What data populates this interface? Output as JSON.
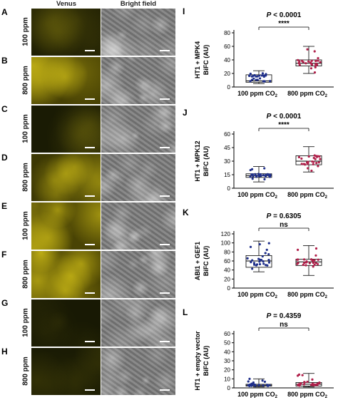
{
  "headers": {
    "venus": "Venus",
    "bright_field": "Bright field"
  },
  "rows": [
    {
      "letter": "A",
      "label": "100 ppm",
      "intensity": 0.18
    },
    {
      "letter": "B",
      "label": "800 ppm",
      "intensity": 0.75
    },
    {
      "letter": "C",
      "label": "100 ppm",
      "intensity": 0.12
    },
    {
      "letter": "D",
      "label": "800 ppm",
      "intensity": 0.6
    },
    {
      "letter": "E",
      "label": "100 ppm",
      "intensity": 0.78
    },
    {
      "letter": "F",
      "label": "800 ppm",
      "intensity": 0.85
    },
    {
      "letter": "G",
      "label": "100 ppm",
      "intensity": 0.08
    },
    {
      "letter": "H",
      "label": "800 ppm",
      "intensity": 0.12
    }
  ],
  "colors": {
    "venus": "#e6d21a",
    "blue_series": "#1f2f8a",
    "red_series": "#b0204a"
  },
  "chart_data": [
    {
      "type": "box",
      "letter": "I",
      "ylabel_line1": "HT1 + MPK4",
      "ylabel_line2": "BiFC (AU)",
      "pvalue_label": "P",
      "pvalue_text": " < 0.0001",
      "sig": "****",
      "categories": [
        "100 ppm CO",
        "800 ppm CO"
      ],
      "subscript": "2",
      "ylim": [
        0,
        80
      ],
      "yticks": [
        "0",
        "20",
        "40",
        "60",
        "80"
      ],
      "boxes": [
        {
          "min": 5,
          "q1": 7,
          "median": 9,
          "q3": 18,
          "max": 24
        },
        {
          "min": 20,
          "q1": 31,
          "median": 35,
          "q3": 40,
          "max": 60
        }
      ]
    },
    {
      "type": "box",
      "letter": "J",
      "ylabel_line1": "HT1 + MPK12",
      "ylabel_line2": "BiFC (AU)",
      "pvalue_label": "P",
      "pvalue_text": " < 0.0001",
      "sig": "****",
      "categories": [
        "100 ppm CO",
        "800 ppm CO"
      ],
      "subscript": "2",
      "ylim": [
        0,
        60
      ],
      "yticks": [
        "0",
        "15",
        "30",
        "45",
        "60"
      ],
      "boxes": [
        {
          "min": 7,
          "q1": 12,
          "median": 14,
          "q3": 16,
          "max": 24
        },
        {
          "min": 18,
          "q1": 26,
          "median": 30,
          "q3": 36,
          "max": 46
        }
      ]
    },
    {
      "type": "box",
      "letter": "K",
      "ylabel_line1": "ABI1 + GEF1",
      "ylabel_line2": "BiFC (AU)",
      "pvalue_label": "P",
      "pvalue_text": " = 0.6305",
      "sig": "ns",
      "categories": [
        "100 ppm CO",
        "800 ppm CO"
      ],
      "subscript": "2",
      "ylim": [
        0,
        120
      ],
      "yticks": [
        "0",
        "20",
        "40",
        "60",
        "80",
        "100",
        "120"
      ],
      "boxes": [
        {
          "min": 36,
          "q1": 46,
          "median": 60,
          "q3": 72,
          "max": 104
        },
        {
          "min": 28,
          "q1": 50,
          "median": 58,
          "q3": 64,
          "max": 94
        }
      ]
    },
    {
      "type": "box",
      "letter": "L",
      "ylabel_line1": "HT1 + empty vector",
      "ylabel_line2": "BiFC (AU)",
      "pvalue_label": "P",
      "pvalue_text": " = 0.4359",
      "sig": "ns",
      "categories": [
        "100 ppm CO",
        "800 ppm CO"
      ],
      "subscript": "2",
      "ylim": [
        0,
        60
      ],
      "yticks": [
        "0",
        "10",
        "20",
        "30",
        "40",
        "50",
        "60"
      ],
      "boxes": [
        {
          "min": 1,
          "q1": 2,
          "median": 3,
          "q3": 4,
          "max": 10
        },
        {
          "min": 1,
          "q1": 2,
          "median": 4,
          "q3": 6,
          "max": 16
        }
      ]
    }
  ]
}
